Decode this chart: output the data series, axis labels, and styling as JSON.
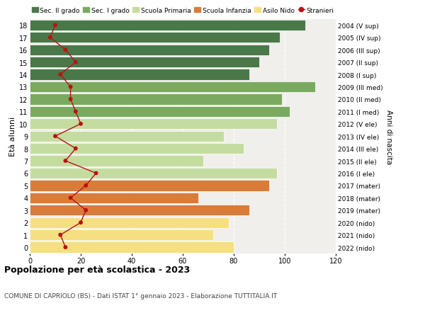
{
  "ages": [
    0,
    1,
    2,
    3,
    4,
    5,
    6,
    7,
    8,
    9,
    10,
    11,
    12,
    13,
    14,
    15,
    16,
    17,
    18
  ],
  "bar_values": [
    80,
    72,
    78,
    86,
    66,
    94,
    97,
    68,
    84,
    76,
    97,
    102,
    99,
    112,
    86,
    90,
    94,
    98,
    108
  ],
  "bar_colors": [
    "#f5df80",
    "#f5df80",
    "#f5df80",
    "#d87c3a",
    "#d87c3a",
    "#d87c3a",
    "#c5dca0",
    "#c5dca0",
    "#c5dca0",
    "#c5dca0",
    "#c5dca0",
    "#7aaa60",
    "#7aaa60",
    "#7aaa60",
    "#4a7848",
    "#4a7848",
    "#4a7848",
    "#4a7848",
    "#4a7848"
  ],
  "stranieri": [
    14,
    12,
    20,
    22,
    16,
    22,
    26,
    14,
    18,
    10,
    20,
    18,
    16,
    16,
    12,
    18,
    14,
    8,
    10
  ],
  "right_labels": [
    "2022 (nido)",
    "2021 (nido)",
    "2020 (nido)",
    "2019 (mater)",
    "2018 (mater)",
    "2017 (mater)",
    "2016 (I ele)",
    "2015 (II ele)",
    "2014 (III ele)",
    "2013 (IV ele)",
    "2012 (V ele)",
    "2011 (I med)",
    "2010 (II med)",
    "2009 (III med)",
    "2008 (I sup)",
    "2007 (II sup)",
    "2006 (III sup)",
    "2005 (IV sup)",
    "2004 (V sup)"
  ],
  "legend_labels": [
    "Sec. II grado",
    "Sec. I grado",
    "Scuola Primaria",
    "Scuola Infanzia",
    "Asilo Nido",
    "Stranieri"
  ],
  "legend_colors": [
    "#4a7848",
    "#7aaa60",
    "#c5dca0",
    "#d87c3a",
    "#f5df80",
    "#bb1111"
  ],
  "title": "Popolazione per età scolastica - 2023",
  "subtitle": "COMUNE DI CAPRIOLO (BS) - Dati ISTAT 1° gennaio 2023 - Elaborazione TUTTITALIA.IT",
  "ylabel_left": "Età alunni",
  "ylabel_right": "Anni di nascita",
  "xlim": [
    0,
    120
  ],
  "xticks": [
    0,
    20,
    40,
    60,
    80,
    100,
    120
  ],
  "ylim": [
    -0.5,
    18.5
  ],
  "background_color": "#ffffff",
  "plot_bg": "#f0efec"
}
